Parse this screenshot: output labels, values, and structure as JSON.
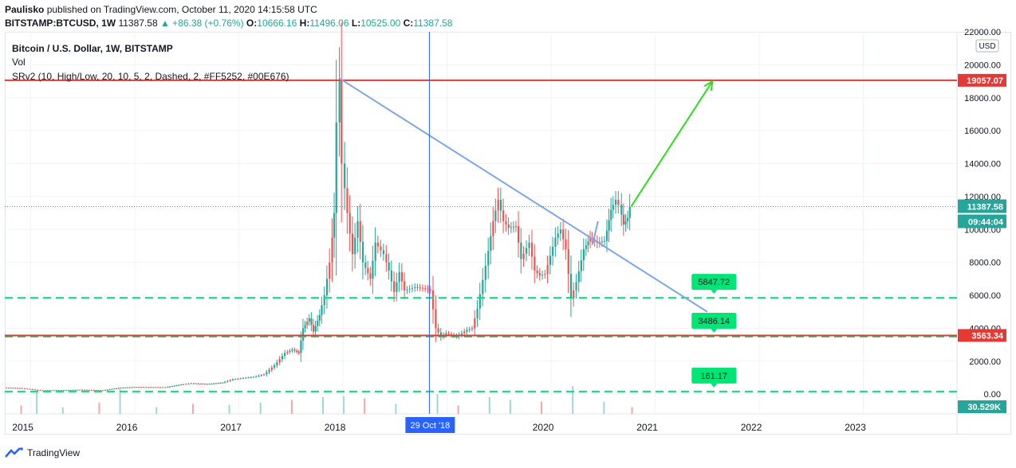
{
  "header": {
    "author": "Paulisko",
    "published_text": "published on TradingView.com, October 11, 2020 14:15:58 UTC",
    "symbol": "BITSTAMP:BTCUSD, 1W",
    "last": "11387.58",
    "change": "▲ +86.38 (+0.76%)",
    "o_label": "O:",
    "o_value": "10666.16",
    "h_label": "H:",
    "h_value": "11496.06",
    "l_label": "L:",
    "l_value": "10525.00",
    "c_label": "C:",
    "c_value": "11387.58"
  },
  "legend": {
    "title": "Bitcoin / U.S. Dollar, 1W, BITSTAMP",
    "vol": "Vol",
    "indicator": "SRv2 (10, High/Low, 20, 10, 5, 2, Dashed, 2, #FF5252, #00E676)"
  },
  "footer": {
    "brand": "TradingView",
    "logo_icon": "tradingview-logo-icon"
  },
  "colors": {
    "up": "#26a69a",
    "down": "#ef5350",
    "resistance": "#e53935",
    "support": "#00e676",
    "trend": "#7fa6e6",
    "arrow": "#2ede1c",
    "crosshair": "#2962ff",
    "axis_text": "#131722"
  },
  "chart_data": {
    "type": "candlestick",
    "currency": "USD",
    "y_ticks": [
      "0.00",
      "2000.00",
      "4000.00",
      "6000.00",
      "8000.00",
      "10000.00",
      "12000.00",
      "14000.00",
      "16000.00",
      "18000.00",
      "20000.00",
      "22000.00"
    ],
    "ylim": [
      -1200,
      22000
    ],
    "x_ticks": [
      "2015",
      "2016",
      "2017",
      "2018",
      "2019",
      "2020",
      "2021",
      "2022",
      "2023"
    ],
    "xlim": [
      2014.75,
      2023.9
    ],
    "last_price_label": "11387.58",
    "countdown_label": "09:44:04",
    "volume_label": "30.529K",
    "crosshair_date_label": "29 Oct '18",
    "crosshair_date": 2018.83,
    "horizontal_levels": [
      {
        "label": "19057.07",
        "value": 19057.07,
        "style": "solid",
        "color": "#e53935"
      },
      {
        "label": "3563.34",
        "value": 3563.34,
        "style": "solid",
        "color": "#e53935"
      }
    ],
    "support_levels": [
      {
        "label": "5847.72",
        "value": 5847.72
      },
      {
        "label": "3486.14",
        "value": 3486.14
      },
      {
        "label": "161.17",
        "value": 161.17
      }
    ],
    "trend_lines": [
      {
        "x1": 2017.96,
        "y1": 19200,
        "x2": 2021.5,
        "y2": 5000
      },
      {
        "x1": 2020.4,
        "y1": 9100,
        "x2": 2020.45,
        "y2": 10500
      }
    ],
    "arrow": {
      "x1": 2020.77,
      "y1": 11400,
      "x2": 2021.55,
      "y2": 19000
    },
    "price_series": [
      [
        2014.75,
        390
      ],
      [
        2014.9,
        370
      ],
      [
        2015.0,
        300
      ],
      [
        2015.1,
        230
      ],
      [
        2015.3,
        240
      ],
      [
        2015.5,
        270
      ],
      [
        2015.7,
        230
      ],
      [
        2015.85,
        380
      ],
      [
        2016.0,
        430
      ],
      [
        2016.3,
        420
      ],
      [
        2016.45,
        580
      ],
      [
        2016.55,
        660
      ],
      [
        2016.7,
        610
      ],
      [
        2016.85,
        700
      ],
      [
        2016.95,
        900
      ],
      [
        2017.05,
        980
      ],
      [
        2017.15,
        1050
      ],
      [
        2017.25,
        1200
      ],
      [
        2017.35,
        1750
      ],
      [
        2017.45,
        2500
      ],
      [
        2017.52,
        2700
      ],
      [
        2017.58,
        2500
      ],
      [
        2017.62,
        4000
      ],
      [
        2017.68,
        4600
      ],
      [
        2017.72,
        3800
      ],
      [
        2017.78,
        4800
      ],
      [
        2017.83,
        6000
      ],
      [
        2017.88,
        8000
      ],
      [
        2017.92,
        11000
      ],
      [
        2017.95,
        16500
      ],
      [
        2017.97,
        19000
      ],
      [
        2018.0,
        14000
      ],
      [
        2018.05,
        11000
      ],
      [
        2018.1,
        8500
      ],
      [
        2018.15,
        10500
      ],
      [
        2018.2,
        8000
      ],
      [
        2018.27,
        7000
      ],
      [
        2018.32,
        9200
      ],
      [
        2018.4,
        8500
      ],
      [
        2018.45,
        7500
      ],
      [
        2018.5,
        6200
      ],
      [
        2018.55,
        7400
      ],
      [
        2018.6,
        6300
      ],
      [
        2018.7,
        6500
      ],
      [
        2018.8,
        6400
      ],
      [
        2018.85,
        6300
      ],
      [
        2018.9,
        4000
      ],
      [
        2018.95,
        3500
      ],
      [
        2019.0,
        3700
      ],
      [
        2019.1,
        3500
      ],
      [
        2019.2,
        3900
      ],
      [
        2019.25,
        4000
      ],
      [
        2019.3,
        5200
      ],
      [
        2019.38,
        7800
      ],
      [
        2019.45,
        10500
      ],
      [
        2019.5,
        11800
      ],
      [
        2019.55,
        10500
      ],
      [
        2019.6,
        10100
      ],
      [
        2019.67,
        10200
      ],
      [
        2019.72,
        8200
      ],
      [
        2019.8,
        9200
      ],
      [
        2019.85,
        7500
      ],
      [
        2019.9,
        7200
      ],
      [
        2019.95,
        7300
      ],
      [
        2020.05,
        9500
      ],
      [
        2020.1,
        10000
      ],
      [
        2020.15,
        8800
      ],
      [
        2020.2,
        5800
      ],
      [
        2020.25,
        6800
      ],
      [
        2020.32,
        8800
      ],
      [
        2020.38,
        9500
      ],
      [
        2020.45,
        9200
      ],
      [
        2020.52,
        9300
      ],
      [
        2020.58,
        11200
      ],
      [
        2020.63,
        11800
      ],
      [
        2020.66,
        11500
      ],
      [
        2020.7,
        10300
      ],
      [
        2020.74,
        10700
      ],
      [
        2020.77,
        11387.58
      ]
    ],
    "volume_series": [
      [
        2014.9,
        0.15
      ],
      [
        2015.05,
        0.4
      ],
      [
        2015.3,
        0.12
      ],
      [
        2015.65,
        0.2
      ],
      [
        2015.85,
        0.45
      ],
      [
        2016.2,
        0.12
      ],
      [
        2016.55,
        0.18
      ],
      [
        2016.9,
        0.16
      ],
      [
        2017.2,
        0.2
      ],
      [
        2017.5,
        0.25
      ],
      [
        2017.8,
        0.3
      ],
      [
        2018.0,
        0.32
      ],
      [
        2018.2,
        0.28
      ],
      [
        2018.5,
        0.18
      ],
      [
        2018.9,
        0.35
      ],
      [
        2019.1,
        0.15
      ],
      [
        2019.4,
        0.3
      ],
      [
        2019.6,
        0.25
      ],
      [
        2019.9,
        0.22
      ],
      [
        2020.2,
        0.5
      ],
      [
        2020.5,
        0.22
      ],
      [
        2020.77,
        0.12
      ]
    ]
  }
}
